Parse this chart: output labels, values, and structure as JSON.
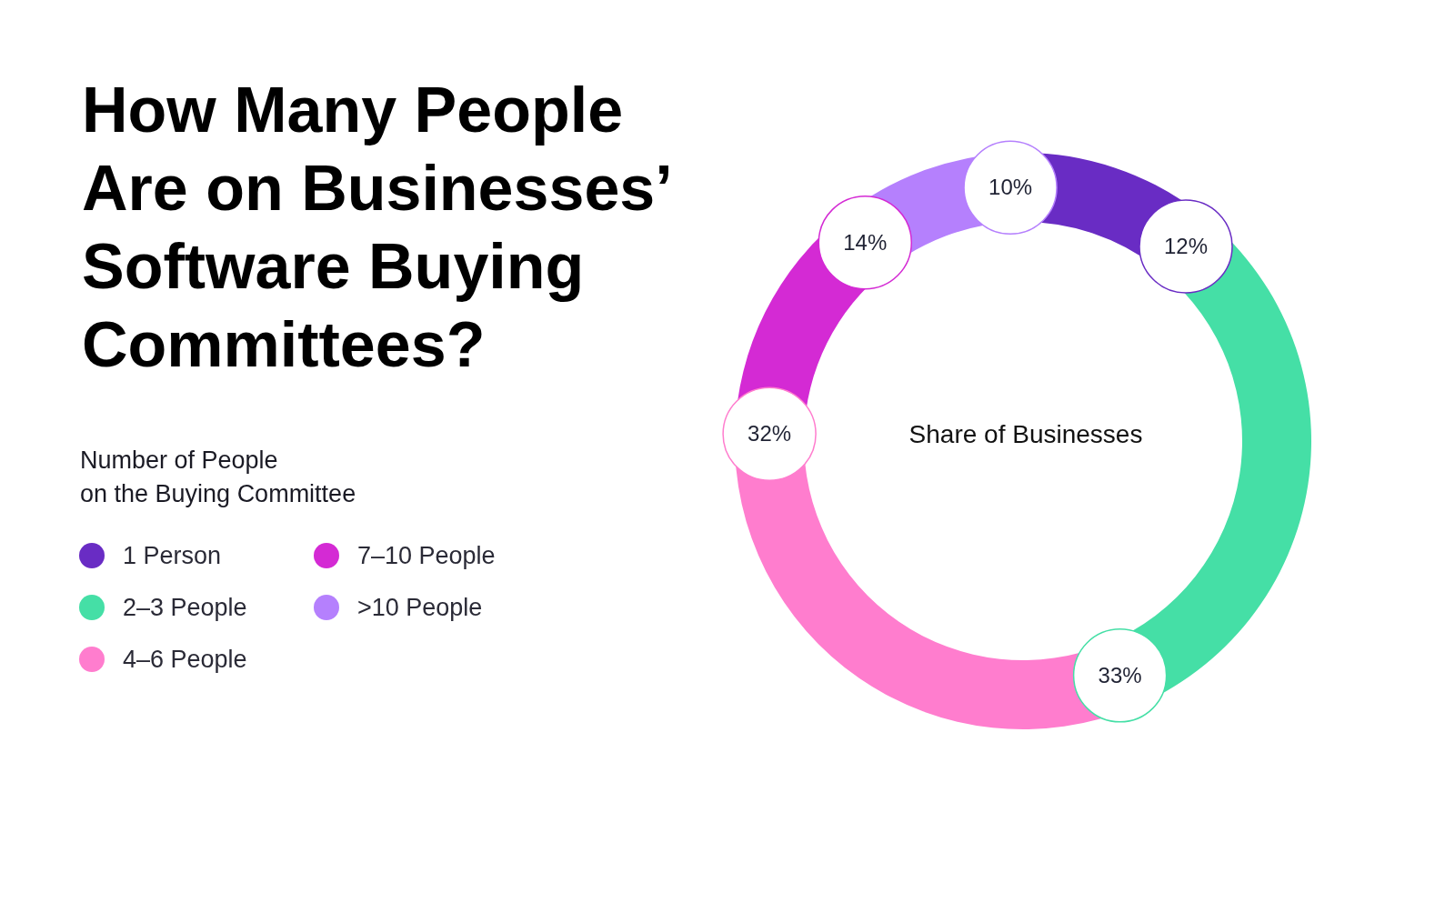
{
  "chart_data": {
    "type": "donut",
    "title": "How Many People\nAre on Businesses’\nSoftware Buying\nCommittees?",
    "legend_title": "Number of People\non the Buying Committee",
    "annotations": [
      "Share of Businesses"
    ],
    "categories": [
      "1 Person",
      "2–3 People",
      "4–6 People",
      "7–10 People",
      ">10 People"
    ],
    "values": [
      12,
      33,
      32,
      14,
      10
    ],
    "value_labels": [
      "12%",
      "33%",
      "32%",
      "14%",
      "10%"
    ],
    "colors": [
      "#692cc4",
      "#45dfa6",
      "#ff7dce",
      "#d42ad4",
      "#b580fd"
    ],
    "legend": "left"
  }
}
